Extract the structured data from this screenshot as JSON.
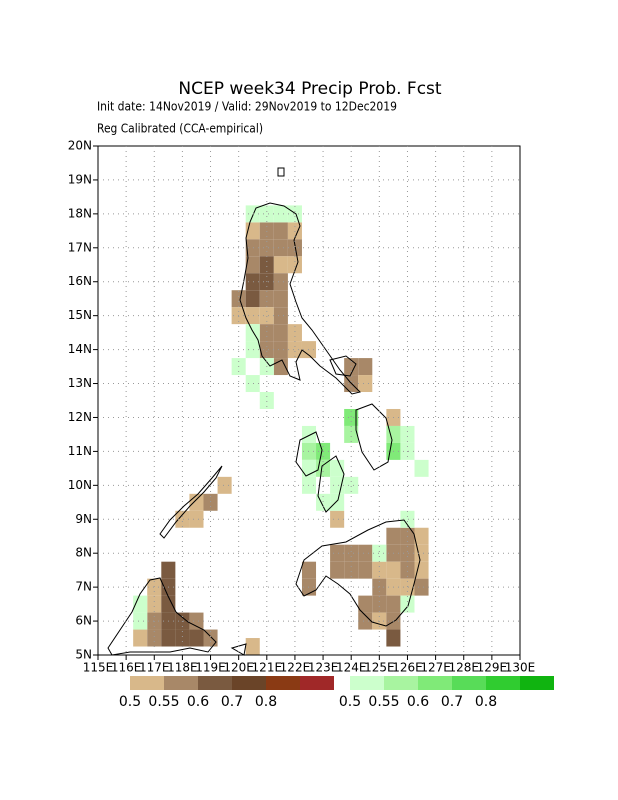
{
  "map": {
    "title": "NCEP week34 Precip Prob. Fcst",
    "subtitle": "Init date: 14Nov2019 / Valid: 29Nov2019 to 12Dec2019",
    "note": "Reg Calibrated (CCA-empirical)",
    "xlim": [
      115,
      130
    ],
    "ylim": [
      5,
      20
    ],
    "xticks": [
      {
        "value": 115,
        "label": "115E"
      },
      {
        "value": 116,
        "label": "116E"
      },
      {
        "value": 117,
        "label": "117E"
      },
      {
        "value": 118,
        "label": "118E"
      },
      {
        "value": 119,
        "label": "119E"
      },
      {
        "value": 120,
        "label": "120E"
      },
      {
        "value": 121,
        "label": "121E"
      },
      {
        "value": 122,
        "label": "122E"
      },
      {
        "value": 123,
        "label": "123E"
      },
      {
        "value": 124,
        "label": "124E"
      },
      {
        "value": 125,
        "label": "125E"
      },
      {
        "value": 126,
        "label": "126E"
      },
      {
        "value": 127,
        "label": "127E"
      },
      {
        "value": 128,
        "label": "128E"
      },
      {
        "value": 129,
        "label": "129E"
      },
      {
        "value": 130,
        "label": "130E"
      }
    ],
    "yticks": [
      {
        "value": 5,
        "label": "5N"
      },
      {
        "value": 6,
        "label": "6N"
      },
      {
        "value": 7,
        "label": "7N"
      },
      {
        "value": 8,
        "label": "8N"
      },
      {
        "value": 9,
        "label": "9N"
      },
      {
        "value": 10,
        "label": "10N"
      },
      {
        "value": 11,
        "label": "11N"
      },
      {
        "value": 12,
        "label": "12N"
      },
      {
        "value": 13,
        "label": "13N"
      },
      {
        "value": 14,
        "label": "14N"
      },
      {
        "value": 15,
        "label": "15N"
      },
      {
        "value": 16,
        "label": "16N"
      },
      {
        "value": 17,
        "label": "17N"
      },
      {
        "value": 18,
        "label": "18N"
      },
      {
        "value": 19,
        "label": "19N"
      },
      {
        "value": 20,
        "label": "20N"
      }
    ],
    "grid": true,
    "levels": [
      0.5,
      0.55,
      0.6,
      0.7,
      0.8
    ],
    "dry_colors": [
      "#d8b88a",
      "#a88868",
      "#7a5a40",
      "#6a4428",
      "#8a3a14",
      "#a02828"
    ],
    "wet_colors": [
      "#ccffcc",
      "#a8f4a0",
      "#80ea78",
      "#58dc58",
      "#30cc30",
      "#10b410"
    ],
    "dry_cells": [
      [
        120.25,
        17.25,
        0.5
      ],
      [
        120.75,
        17.25,
        0.55
      ],
      [
        121.25,
        17.25,
        0.55
      ],
      [
        121.75,
        17.25,
        0.5
      ],
      [
        120.25,
        16.75,
        0.55
      ],
      [
        120.75,
        16.75,
        0.55
      ],
      [
        121.25,
        16.75,
        0.55
      ],
      [
        121.75,
        16.75,
        0.55
      ],
      [
        120.25,
        16.25,
        0.55
      ],
      [
        120.75,
        16.25,
        0.6
      ],
      [
        121.25,
        16.25,
        0.5
      ],
      [
        121.75,
        16.25,
        0.5
      ],
      [
        120.25,
        15.75,
        0.6
      ],
      [
        120.75,
        15.75,
        0.6
      ],
      [
        121.25,
        15.75,
        0.55
      ],
      [
        119.75,
        15.25,
        0.55
      ],
      [
        120.25,
        15.25,
        0.6
      ],
      [
        120.75,
        15.25,
        0.55
      ],
      [
        121.25,
        15.25,
        0.55
      ],
      [
        119.75,
        14.75,
        0.5
      ],
      [
        120.25,
        14.75,
        0.5
      ],
      [
        120.75,
        14.75,
        0.5
      ],
      [
        121.25,
        14.75,
        0.55
      ],
      [
        120.75,
        14.25,
        0.55
      ],
      [
        121.25,
        14.25,
        0.55
      ],
      [
        121.75,
        14.25,
        0.5
      ],
      [
        120.75,
        13.75,
        0.55
      ],
      [
        121.25,
        13.75,
        0.55
      ],
      [
        121.75,
        13.75,
        0.5
      ],
      [
        122.25,
        13.75,
        0.5
      ],
      [
        121.25,
        13.25,
        0.55
      ],
      [
        123.75,
        13.25,
        0.55
      ],
      [
        124.25,
        13.25,
        0.55
      ],
      [
        123.75,
        12.75,
        0.55
      ],
      [
        124.25,
        12.75,
        0.5
      ],
      [
        125.25,
        11.75,
        0.5
      ],
      [
        123.25,
        8.75,
        0.5
      ],
      [
        119.25,
        9.75,
        0.5
      ],
      [
        118.75,
        9.25,
        0.55
      ],
      [
        118.25,
        9.25,
        0.5
      ],
      [
        118.25,
        8.75,
        0.5
      ],
      [
        117.75,
        8.75,
        0.5
      ],
      [
        125.25,
        8.25,
        0.55
      ],
      [
        125.75,
        8.25,
        0.55
      ],
      [
        126.25,
        8.25,
        0.5
      ],
      [
        123.25,
        7.75,
        0.55
      ],
      [
        123.75,
        7.75,
        0.55
      ],
      [
        124.25,
        7.75,
        0.55
      ],
      [
        125.25,
        7.75,
        0.55
      ],
      [
        125.75,
        7.75,
        0.55
      ],
      [
        126.25,
        7.75,
        0.5
      ],
      [
        122.25,
        7.25,
        0.55
      ],
      [
        123.25,
        7.25,
        0.55
      ],
      [
        123.75,
        7.25,
        0.55
      ],
      [
        124.25,
        7.25,
        0.55
      ],
      [
        124.75,
        7.25,
        0.5
      ],
      [
        125.25,
        7.25,
        0.5
      ],
      [
        125.75,
        7.25,
        0.55
      ],
      [
        126.25,
        7.25,
        0.5
      ],
      [
        122.25,
        6.75,
        0.55
      ],
      [
        124.75,
        6.75,
        0.55
      ],
      [
        125.25,
        6.75,
        0.5
      ],
      [
        125.75,
        6.75,
        0.5
      ],
      [
        126.25,
        6.75,
        0.55
      ],
      [
        124.25,
        6.25,
        0.55
      ],
      [
        124.75,
        6.25,
        0.55
      ],
      [
        125.25,
        6.25,
        0.55
      ],
      [
        124.25,
        5.75,
        0.55
      ],
      [
        124.75,
        5.75,
        0.5
      ],
      [
        125.25,
        5.75,
        0.55
      ],
      [
        125.25,
        5.25,
        0.6
      ],
      [
        117.25,
        7.25,
        0.6
      ],
      [
        116.75,
        6.75,
        0.5
      ],
      [
        117.25,
        6.75,
        0.6
      ],
      [
        116.75,
        6.25,
        0.5
      ],
      [
        117.25,
        6.25,
        0.6
      ],
      [
        116.75,
        5.75,
        0.55
      ],
      [
        117.25,
        5.75,
        0.6
      ],
      [
        117.75,
        5.75,
        0.6
      ],
      [
        118.25,
        5.75,
        0.55
      ],
      [
        116.25,
        5.25,
        0.5
      ],
      [
        116.75,
        5.25,
        0.55
      ],
      [
        117.25,
        5.25,
        0.6
      ],
      [
        117.75,
        5.25,
        0.6
      ],
      [
        118.25,
        5.25,
        0.6
      ],
      [
        118.75,
        5.25,
        0.55
      ],
      [
        120.25,
        5.0,
        0.5
      ]
    ],
    "wet_cells": [
      [
        120.25,
        17.75,
        0.5
      ],
      [
        120.75,
        17.75,
        0.5
      ],
      [
        121.25,
        17.75,
        0.5
      ],
      [
        121.75,
        17.75,
        0.5
      ],
      [
        120.25,
        14.25,
        0.5
      ],
      [
        120.25,
        13.75,
        0.5
      ],
      [
        119.75,
        13.25,
        0.5
      ],
      [
        120.75,
        13.25,
        0.5
      ],
      [
        120.25,
        12.75,
        0.5
      ],
      [
        120.75,
        12.25,
        0.5
      ],
      [
        123.75,
        11.75,
        0.6
      ],
      [
        122.25,
        11.25,
        0.5
      ],
      [
        123.75,
        11.25,
        0.55
      ],
      [
        125.25,
        11.25,
        0.55
      ],
      [
        125.75,
        11.25,
        0.5
      ],
      [
        122.25,
        10.75,
        0.55
      ],
      [
        122.75,
        10.75,
        0.6
      ],
      [
        125.25,
        10.75,
        0.6
      ],
      [
        125.75,
        10.75,
        0.5
      ],
      [
        122.25,
        10.25,
        0.5
      ],
      [
        122.75,
        10.25,
        0.55
      ],
      [
        123.25,
        10.25,
        0.5
      ],
      [
        126.25,
        10.25,
        0.5
      ],
      [
        122.25,
        9.75,
        0.5
      ],
      [
        123.25,
        9.75,
        0.5
      ],
      [
        123.75,
        9.75,
        0.5
      ],
      [
        122.75,
        9.25,
        0.5
      ],
      [
        123.25,
        9.25,
        0.5
      ],
      [
        125.75,
        8.75,
        0.5
      ],
      [
        124.75,
        7.75,
        0.5
      ],
      [
        125.75,
        6.25,
        0.5
      ],
      [
        116.25,
        6.25,
        0.5
      ],
      [
        116.25,
        5.75,
        0.5
      ]
    ]
  }
}
